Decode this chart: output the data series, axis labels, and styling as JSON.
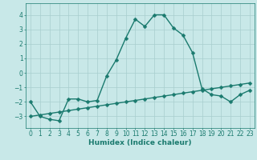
{
  "x": [
    0,
    1,
    2,
    3,
    4,
    5,
    6,
    7,
    8,
    9,
    10,
    11,
    12,
    13,
    14,
    15,
    16,
    17,
    18,
    19,
    20,
    21,
    22,
    23
  ],
  "y_curve": [
    -2.0,
    -3.0,
    -3.2,
    -3.3,
    -1.8,
    -1.8,
    -2.0,
    -1.9,
    -0.2,
    0.9,
    2.4,
    3.7,
    3.2,
    4.0,
    4.0,
    3.1,
    2.6,
    1.4,
    -1.1,
    -1.5,
    -1.6,
    -2.0,
    -1.5,
    -1.2
  ],
  "y_line": [
    -3.0,
    -2.9,
    -2.8,
    -2.7,
    -2.6,
    -2.5,
    -2.4,
    -2.3,
    -2.2,
    -2.1,
    -2.0,
    -1.9,
    -1.8,
    -1.7,
    -1.6,
    -1.5,
    -1.4,
    -1.3,
    -1.2,
    -1.1,
    -1.0,
    -0.9,
    -0.8,
    -0.7
  ],
  "color_main": "#1a7a6e",
  "background_color": "#c8e8e8",
  "grid_color": "#a8cece",
  "xlabel": "Humidex (Indice chaleur)",
  "ylim": [
    -3.8,
    4.8
  ],
  "xlim": [
    -0.5,
    23.5
  ],
  "ytick_values": [
    -3,
    -2,
    -1,
    0,
    1,
    2,
    3,
    4
  ],
  "markersize": 2.5,
  "linewidth": 1.0,
  "xlabel_fontsize": 6.5,
  "tick_fontsize": 5.5
}
